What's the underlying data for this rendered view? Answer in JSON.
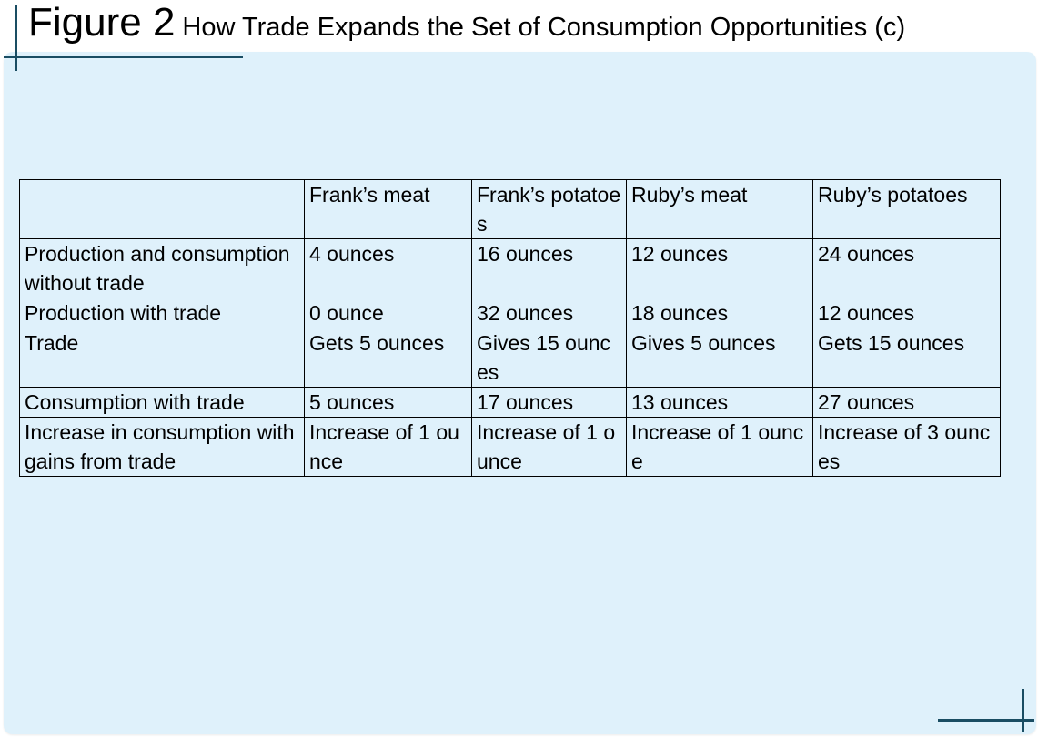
{
  "title": {
    "figure_label": "Figure 2",
    "subtitle": "How Trade Expands the Set of Consumption Opportunities (c)"
  },
  "table": {
    "headers": [
      "",
      "Frank’s meat",
      "Frank’s potatoes",
      "Ruby’s meat",
      "Ruby’s potatoes"
    ],
    "rows": [
      [
        "Production and consumption without trade",
        "4 ounces",
        "16 ounces",
        "12 ounces",
        "24 ounces"
      ],
      [
        "Production with trade",
        "0 ounce",
        "32 ounces",
        "18 ounces",
        "12 ounces"
      ],
      [
        "Trade",
        "Gets 5 ounces",
        "Gives 15 ounces",
        "Gives 5 ounces",
        "Gets 15 ounces"
      ],
      [
        "Consumption with trade",
        "5 ounces",
        "17 ounces",
        "13 ounces",
        "27 ounces"
      ],
      [
        "Increase in consumption with gains from trade",
        "Increase of 1 ounce",
        "Increase of 1 ounce",
        "Increase of 1 ounce",
        "Increase of 3 ounces"
      ]
    ]
  },
  "colors": {
    "panel_background": "#dff1fb",
    "accent": "#1a4d63"
  }
}
